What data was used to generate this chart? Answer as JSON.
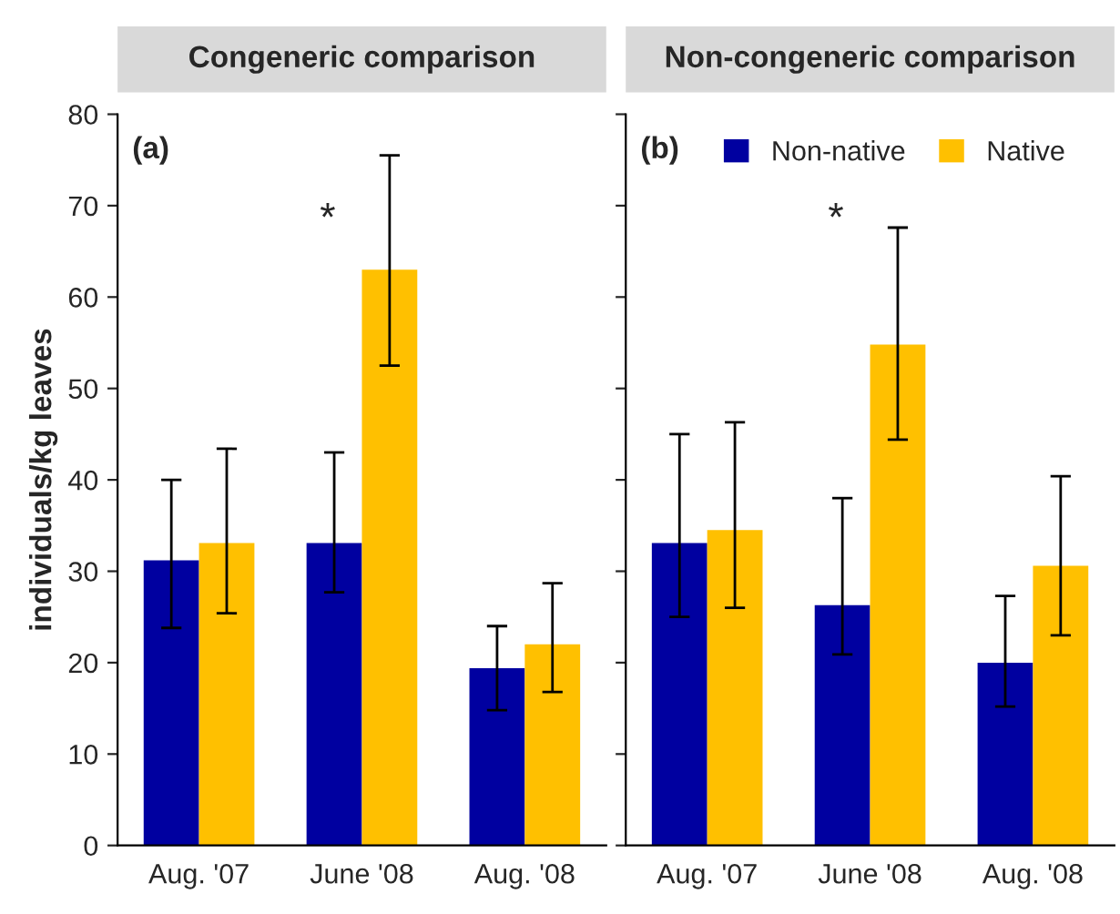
{
  "chart_data": [
    {
      "type": "bar",
      "title": "Congeneric comparison",
      "ylabel": "individuals/kg leaves",
      "categories": [
        "Aug. '07",
        "June '08",
        "Aug. '08"
      ],
      "series": [
        {
          "color": "#0000a0",
          "values": [
            31.2,
            33.1,
            19.4
          ],
          "errors": [
            [
              23.8,
              40
            ],
            [
              27.7,
              43
            ],
            [
              14.8,
              24
            ]
          ]
        },
        {
          "color": "#ffc000",
          "values": [
            33.1,
            63,
            22
          ],
          "errors": [
            [
              25.4,
              43.4
            ],
            [
              52.5,
              75.5
            ],
            [
              16.8,
              28.7
            ]
          ]
        }
      ],
      "ylim": [
        0,
        80
      ],
      "yticks": [
        0,
        10,
        20,
        30,
        40,
        50,
        60,
        70,
        80
      ],
      "grid": false,
      "legend": false,
      "annotations": [
        "(a)",
        "*"
      ]
    },
    {
      "type": "bar",
      "title": "Non-congeneric comparison",
      "categories": [
        "Aug. '07",
        "June '08",
        "Aug. '08"
      ],
      "series": [
        {
          "name": "Non-native",
          "color": "#0000a0",
          "values": [
            33.1,
            26.3,
            20
          ],
          "errors": [
            [
              25,
              45
            ],
            [
              20.9,
              38
            ],
            [
              15.2,
              27.3
            ]
          ]
        },
        {
          "name": "Native",
          "color": "#ffc000",
          "values": [
            34.5,
            54.8,
            30.6
          ],
          "errors": [
            [
              26,
              46.3
            ],
            [
              44.4,
              67.6
            ],
            [
              23,
              40.4
            ]
          ]
        }
      ],
      "ylim": [
        0,
        80
      ],
      "yticks": [
        0,
        10,
        20,
        30,
        40,
        50,
        60,
        70,
        80
      ],
      "tick_labels": "x",
      "grid": false,
      "legend": "top",
      "annotations": [
        "(b)",
        "*"
      ]
    }
  ]
}
